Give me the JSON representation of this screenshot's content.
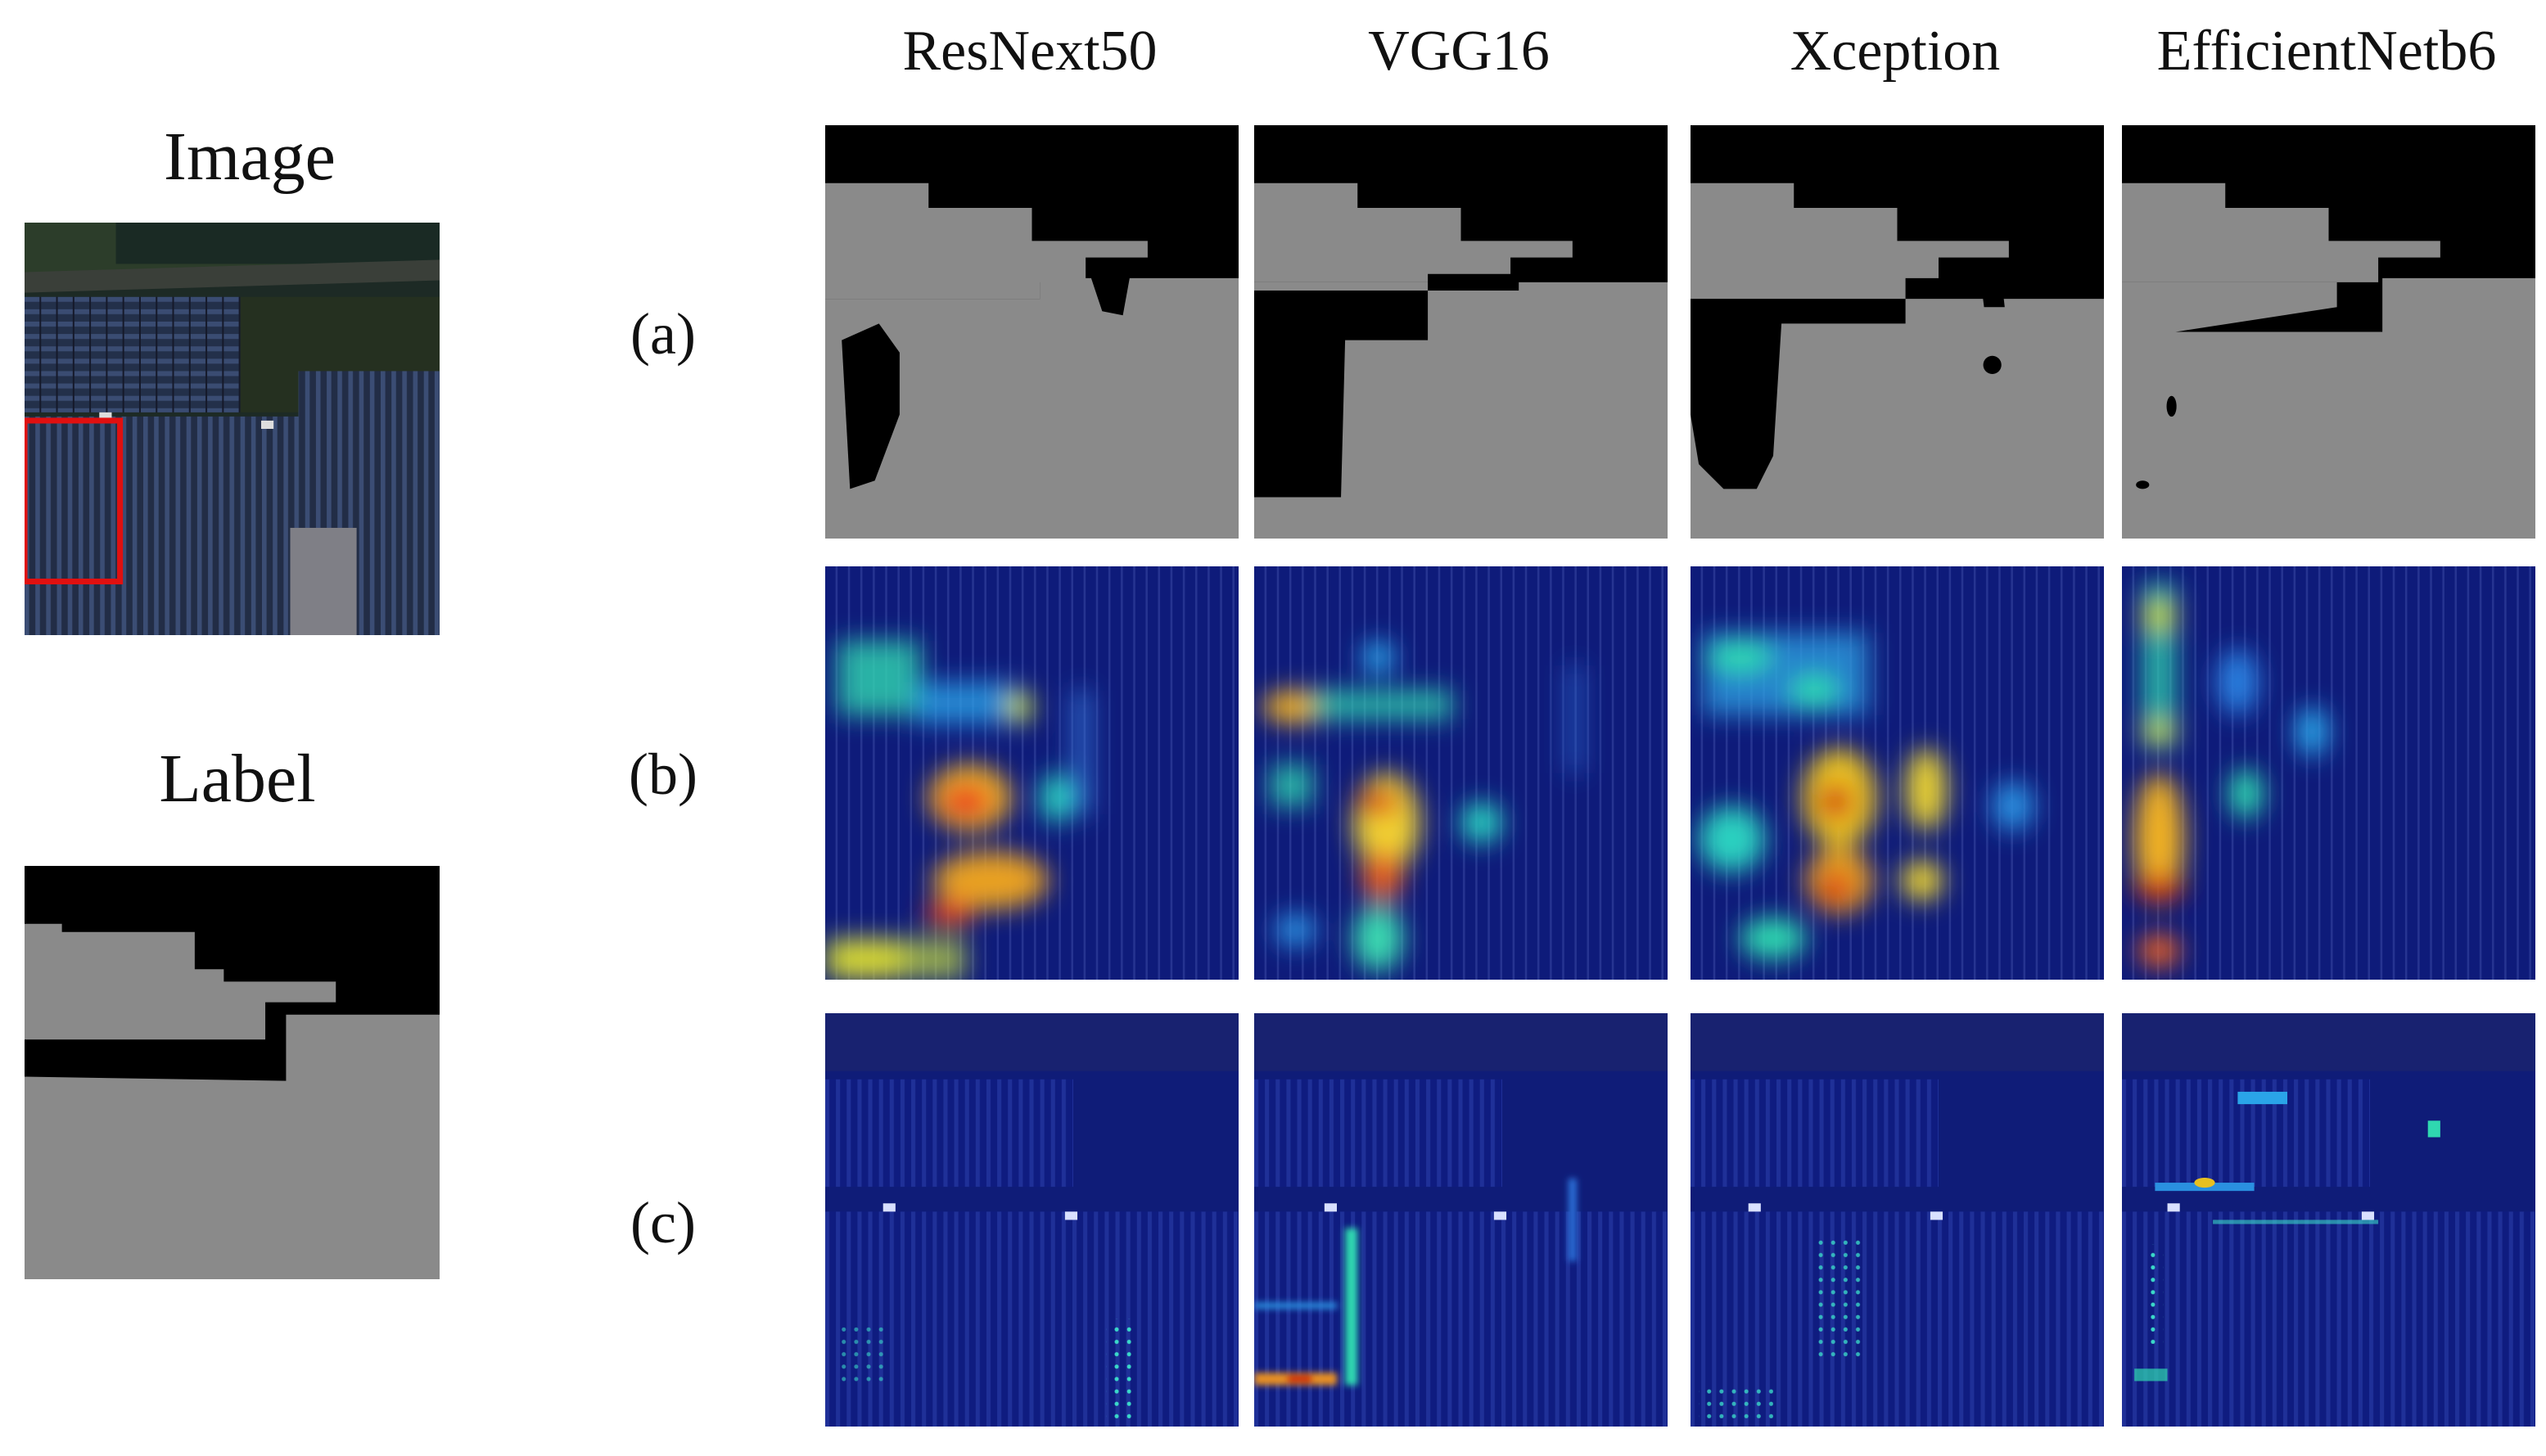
{
  "left_panel": {
    "image_title": "Image",
    "label_title": "Label"
  },
  "columns": [
    "ResNext50",
    "VGG16",
    "Xception",
    "EfficientNetb6"
  ],
  "rows": [
    "(a)",
    "(b)",
    "(c)"
  ],
  "colors": {
    "background_class": "#000000",
    "foreground_class": "#8a8a8a",
    "highlight_box": "#e01010",
    "heatmap_base": "#0d1a6e"
  }
}
